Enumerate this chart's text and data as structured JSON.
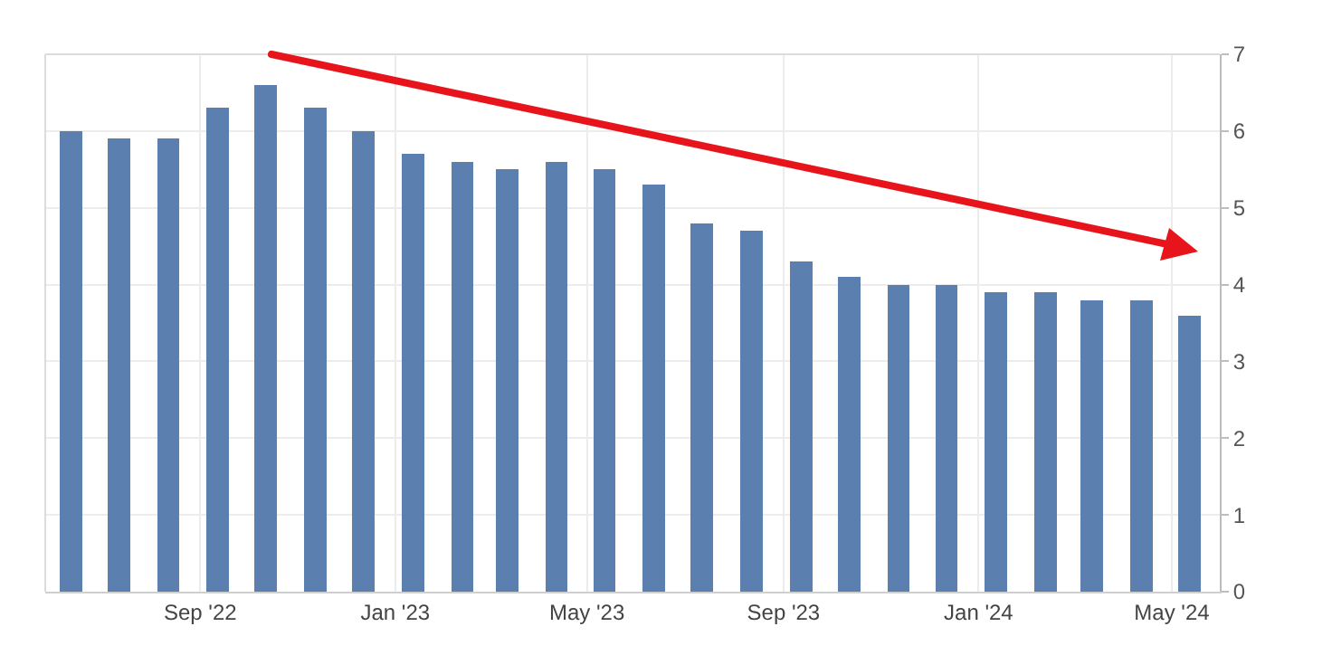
{
  "chart_data": {
    "type": "bar",
    "x": [
      "2022-06-12",
      "2022-07-12",
      "2022-08-12",
      "2022-09-12",
      "2022-10-12",
      "2022-11-12",
      "2022-12-12",
      "2023-01-12",
      "2023-02-12",
      "2023-03-12",
      "2023-04-12",
      "2023-05-12",
      "2023-06-12",
      "2023-07-12",
      "2023-08-12",
      "2023-09-12",
      "2023-10-12",
      "2023-11-12",
      "2023-12-12",
      "2024-01-12",
      "2024-02-12",
      "2024-03-12",
      "2024-04-12",
      "2024-05-12"
    ],
    "values": [
      6.0,
      5.9,
      5.9,
      6.3,
      6.6,
      6.3,
      6.0,
      5.7,
      5.6,
      5.5,
      5.6,
      5.5,
      5.3,
      4.8,
      4.7,
      4.3,
      4.1,
      4.0,
      4.0,
      3.9,
      3.9,
      3.8,
      3.8,
      3.6
    ],
    "color": "#5b80b0",
    "xlim": [
      "2022-05-27",
      "2024-05-31"
    ],
    "xticks": [
      {
        "value": "2022-09",
        "label": "Sep '22"
      },
      {
        "value": "2023-01",
        "label": "Jan '23"
      },
      {
        "value": "2023-05",
        "label": "May '23"
      },
      {
        "value": "2023-09",
        "label": "Sep '23"
      },
      {
        "value": "2024-01",
        "label": "Jan '24"
      },
      {
        "value": "2024-05",
        "label": "May '24"
      }
    ],
    "ylim": [
      0,
      7
    ],
    "yticks": [
      0,
      1,
      2,
      3,
      4,
      5,
      6,
      7
    ],
    "grid": true
  }
}
